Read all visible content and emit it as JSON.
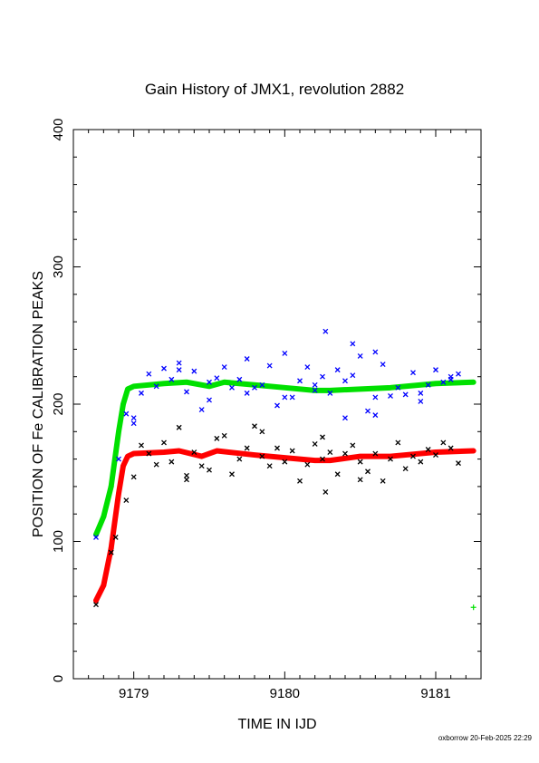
{
  "chart_data": {
    "type": "scatter",
    "title": "Gain History of JMX1, revolution 2882",
    "xlabel": "TIME IN IJD",
    "ylabel": "POSITION OF Fe CALIBRATION PEAKS",
    "xlim": [
      9178.6,
      9181.3
    ],
    "ylim": [
      0,
      400
    ],
    "xticks": [
      9179,
      9180,
      9181
    ],
    "yticks": [
      0,
      100,
      200,
      300,
      400
    ],
    "colors": {
      "fit_upper": "#00e000",
      "fit_lower": "#ff0000",
      "points_upper": "#0000ff",
      "points_lower": "#000000"
    },
    "series": [
      {
        "role": "fit_upper",
        "x": [
          9178.75,
          9178.8,
          9178.85,
          9178.9,
          9178.93,
          9178.96,
          9179.0,
          9179.2,
          9179.35,
          9179.5,
          9179.6,
          9179.8,
          9180.0,
          9180.2,
          9180.3,
          9180.5,
          9180.7,
          9181.0,
          9181.25
        ],
        "y": [
          105,
          118,
          140,
          180,
          200,
          211,
          213,
          215,
          216,
          213,
          216,
          214,
          212,
          210,
          210,
          211,
          212,
          215,
          216
        ]
      },
      {
        "role": "fit_lower",
        "x": [
          9178.75,
          9178.8,
          9178.85,
          9178.9,
          9178.93,
          9178.96,
          9179.0,
          9179.2,
          9179.3,
          9179.45,
          9179.55,
          9179.8,
          9180.0,
          9180.2,
          9180.3,
          9180.5,
          9180.7,
          9181.0,
          9181.25
        ],
        "y": [
          57,
          68,
          95,
          135,
          155,
          162,
          164,
          165,
          166,
          162,
          166,
          163,
          161,
          159,
          159,
          162,
          162,
          165,
          166
        ]
      },
      {
        "role": "points_upper",
        "x": [
          9178.75,
          9178.9,
          9178.95,
          9179.0,
          9179.05,
          9179.1,
          9179.15,
          9179.2,
          9179.25,
          9179.3,
          9179.35,
          9179.4,
          9179.45,
          9179.5,
          9179.55,
          9179.6,
          9179.65,
          9179.7,
          9179.75,
          9179.8,
          9179.85,
          9179.9,
          9179.95,
          9180.0,
          9180.05,
          9180.1,
          9180.15,
          9180.2,
          9180.25,
          9180.3,
          9180.35,
          9180.4,
          9180.45,
          9180.5,
          9180.55,
          9180.6,
          9180.65,
          9180.7,
          9180.75,
          9180.8,
          9180.85,
          9180.9,
          9180.95,
          9181.0,
          9181.05,
          9181.1,
          9181.15,
          9179.0,
          9179.3,
          9179.5,
          9179.75,
          9180.0,
          9180.2,
          9180.4,
          9180.6,
          9180.9,
          9181.1,
          9180.27,
          9180.45,
          9180.6
        ],
        "y": [
          103,
          160,
          193,
          186,
          208,
          222,
          213,
          226,
          218,
          230,
          209,
          224,
          196,
          203,
          219,
          227,
          212,
          218,
          233,
          212,
          214,
          228,
          199,
          237,
          205,
          217,
          227,
          214,
          220,
          208,
          225,
          217,
          221,
          235,
          195,
          205,
          229,
          206,
          212,
          207,
          223,
          208,
          214,
          225,
          216,
          220,
          222,
          190,
          225,
          216,
          208,
          205,
          210,
          190,
          192,
          202,
          218,
          253,
          244,
          238
        ]
      },
      {
        "role": "points_lower",
        "x": [
          9178.75,
          9178.85,
          9178.88,
          9178.95,
          9179.0,
          9179.05,
          9179.1,
          9179.15,
          9179.2,
          9179.25,
          9179.3,
          9179.35,
          9179.4,
          9179.45,
          9179.5,
          9179.55,
          9179.6,
          9179.65,
          9179.7,
          9179.75,
          9179.8,
          9179.85,
          9179.9,
          9179.95,
          9180.0,
          9180.05,
          9180.1,
          9180.15,
          9180.2,
          9180.25,
          9180.3,
          9180.35,
          9180.4,
          9180.45,
          9180.5,
          9180.55,
          9180.6,
          9180.65,
          9180.7,
          9180.75,
          9180.8,
          9180.85,
          9180.9,
          9180.95,
          9181.0,
          9181.05,
          9181.1,
          9181.15,
          9180.25,
          9180.27,
          9180.5,
          9179.35,
          9179.85
        ],
        "y": [
          54,
          92,
          103,
          130,
          147,
          170,
          164,
          156,
          172,
          158,
          183,
          148,
          165,
          155,
          152,
          175,
          177,
          149,
          160,
          168,
          184,
          162,
          155,
          168,
          158,
          166,
          144,
          156,
          171,
          160,
          165,
          149,
          164,
          170,
          158,
          151,
          164,
          144,
          160,
          172,
          153,
          162,
          158,
          167,
          163,
          172,
          168,
          157,
          176,
          136,
          145,
          145,
          180
        ]
      }
    ],
    "marker_right_edge": {
      "x": 9181.25,
      "y": 52
    }
  },
  "footer": "oxborrow 20-Feb-2025 22:29"
}
